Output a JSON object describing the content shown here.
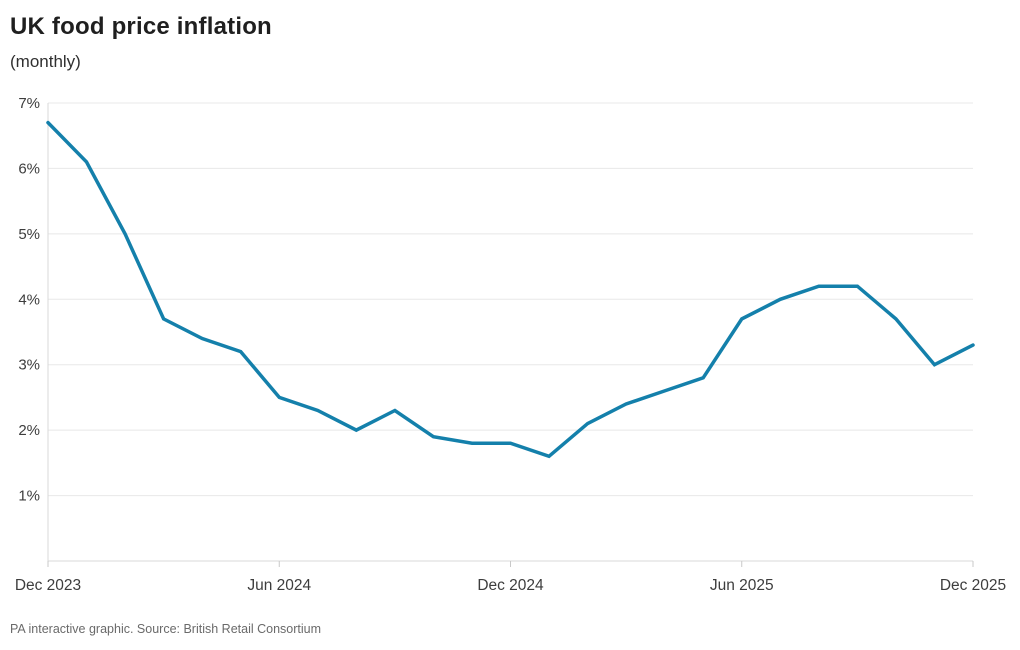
{
  "header": {
    "title": "UK food price inflation",
    "subtitle": "(monthly)"
  },
  "footer": {
    "source": "PA interactive graphic. Source: British Retail Consortium"
  },
  "chart_data": {
    "type": "line",
    "title": "UK food price inflation",
    "subtitle": "(monthly)",
    "x": [
      "Dec 2023",
      "Jan 2024",
      "Feb 2024",
      "Mar 2024",
      "Apr 2024",
      "May 2024",
      "Jun 2024",
      "Jul 2024",
      "Aug 2024",
      "Sep 2024",
      "Oct 2024",
      "Nov 2024",
      "Dec 2024",
      "Jan 2025",
      "Feb 2025",
      "Mar 2025",
      "Apr 2025",
      "May 2025",
      "Jun 2025",
      "Jul 2025",
      "Aug 2025",
      "Sep 2025",
      "Oct 2025",
      "Nov 2025",
      "Dec 2025"
    ],
    "series": [
      {
        "name": "UK food price inflation (%)",
        "values": [
          6.7,
          6.1,
          5.0,
          3.7,
          3.4,
          3.2,
          2.5,
          2.3,
          2.0,
          2.3,
          1.9,
          1.8,
          1.8,
          1.6,
          2.1,
          2.4,
          2.6,
          2.8,
          3.7,
          4.0,
          4.2,
          4.2,
          3.7,
          3.0,
          3.3
        ]
      }
    ],
    "ylim": [
      0,
      7
    ],
    "grid": true,
    "legend": "none",
    "y_ticks": [
      {
        "value": 7,
        "label": "7%"
      },
      {
        "value": 6,
        "label": "6%"
      },
      {
        "value": 5,
        "label": "5%"
      },
      {
        "value": 4,
        "label": "4%"
      },
      {
        "value": 3,
        "label": "3%"
      },
      {
        "value": 2,
        "label": "2%"
      },
      {
        "value": 1,
        "label": "1%"
      }
    ],
    "x_ticks": [
      {
        "index": 0,
        "label": "Dec 2023"
      },
      {
        "index": 6,
        "label": "Jun 2024"
      },
      {
        "index": 12,
        "label": "Dec 2024"
      },
      {
        "index": 18,
        "label": "Jun 2025"
      },
      {
        "index": 24,
        "label": "Dec 2025"
      }
    ],
    "colors": {
      "line": "#1480AB",
      "grid": "#e8e8e8",
      "axis": "#d9d9d9",
      "tick": "#c9c9c9",
      "tick_label": "#3d3d3d",
      "background": "#ffffff"
    }
  }
}
